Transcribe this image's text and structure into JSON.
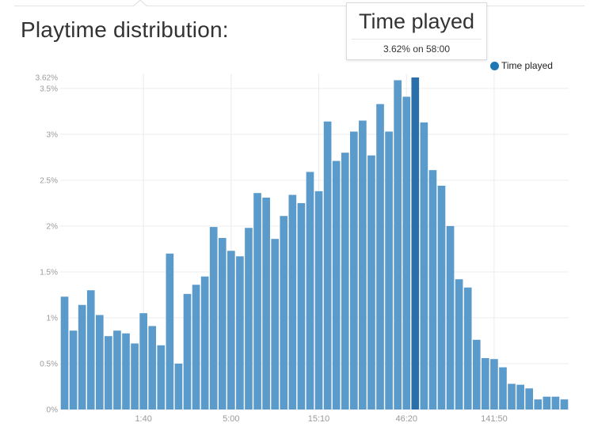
{
  "title": "Playtime distribution:",
  "tooltip": {
    "series": "Time played",
    "value_text": "3.62% on 58:00"
  },
  "legend": {
    "label": "Time played",
    "color": "#1f78b4"
  },
  "colors": {
    "bar": "#5b9bcb",
    "highlight": "#2a6fa9",
    "grid": "#ececec",
    "tick_text": "#9a9a9a"
  },
  "chart_data": {
    "type": "bar",
    "title": "Playtime distribution:",
    "xlabel": "",
    "ylabel": "",
    "ylim": [
      0,
      3.62
    ],
    "y_unit": "%",
    "yticks": [
      0,
      0.5,
      1,
      1.5,
      2,
      2.5,
      3,
      3.5
    ],
    "ytick_labels": [
      "0%",
      "0.5%",
      "1%",
      "1.5%",
      "2%",
      "2.5%",
      "3%",
      "3.5%"
    ],
    "ymax_label": "3.62%",
    "xtick_labels": [
      {
        "index": 9.5,
        "label": "1:40"
      },
      {
        "index": 19.5,
        "label": "5:00"
      },
      {
        "index": 29.5,
        "label": "15:10"
      },
      {
        "index": 39.5,
        "label": "46:20"
      },
      {
        "index": 49.5,
        "label": "141:50"
      }
    ],
    "highlight_index": 40,
    "grid": true,
    "legend_position": "top-right",
    "series": [
      {
        "name": "Time played",
        "values": [
          1.23,
          0.86,
          1.14,
          1.3,
          1.03,
          0.8,
          0.86,
          0.83,
          0.72,
          1.05,
          0.91,
          0.7,
          1.7,
          0.5,
          1.26,
          1.36,
          1.45,
          1.99,
          1.87,
          1.73,
          1.67,
          1.98,
          2.36,
          2.31,
          1.86,
          2.11,
          2.34,
          2.25,
          2.59,
          2.38,
          3.14,
          2.71,
          2.8,
          3.03,
          3.15,
          2.77,
          3.33,
          3.03,
          3.59,
          3.41,
          3.62,
          3.13,
          2.61,
          2.44,
          2.0,
          1.42,
          1.33,
          0.76,
          0.56,
          0.55,
          0.46,
          0.28,
          0.27,
          0.23,
          0.11,
          0.14,
          0.14,
          0.11
        ]
      }
    ]
  }
}
